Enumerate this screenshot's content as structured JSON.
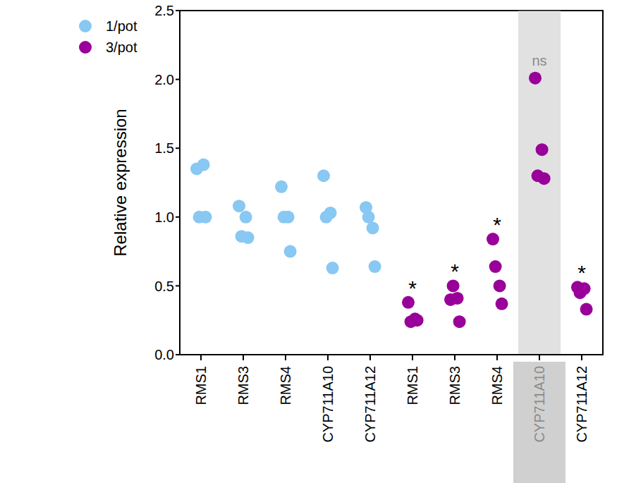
{
  "chart_data": {
    "type": "scatter",
    "y_label": "Relative expression",
    "categories": [
      "RMS1",
      "RMS3",
      "RMS4",
      "CYP711A10",
      "CYP711A12",
      "RMS1",
      "RMS3",
      "RMS4",
      "CYP711A10",
      "CYP711A12"
    ],
    "series": [
      {
        "name": "1/pot",
        "color": "#88c8f2",
        "marker": "circle",
        "values": [
          [
            1.35,
            1.38,
            1.0,
            1.0
          ],
          [
            1.08,
            1.0,
            0.86,
            0.85
          ],
          [
            1.22,
            1.0,
            1.0,
            0.75
          ],
          [
            1.3,
            1.03,
            1.0,
            0.63
          ],
          [
            1.07,
            0.92,
            1.0,
            0.64
          ],
          null,
          null,
          null,
          null,
          null
        ]
      },
      {
        "name": "3/pot",
        "color": "#990099",
        "marker": "circle",
        "values": [
          null,
          null,
          null,
          null,
          null,
          [
            0.38,
            0.26,
            0.24,
            0.25
          ],
          [
            0.4,
            0.41,
            0.5,
            0.24
          ],
          [
            0.84,
            0.5,
            0.64,
            0.37
          ],
          [
            2.01,
            1.49,
            1.3,
            1.28
          ],
          [
            0.49,
            0.48,
            0.45,
            0.33
          ]
        ]
      }
    ],
    "annotations": [
      null,
      null,
      null,
      null,
      null,
      "*",
      "*",
      "*",
      "ns",
      "*"
    ],
    "highlight_category_index": 8,
    "ylim": [
      0,
      2.5
    ],
    "yticks": [
      {
        "value": 0,
        "label": "0.0"
      },
      {
        "value": 0.5,
        "label": "0.5"
      },
      {
        "value": 1,
        "label": "1.0"
      },
      {
        "value": 1.5,
        "label": "1.5"
      },
      {
        "value": 2,
        "label": "2.0"
      },
      {
        "value": 2.5,
        "label": "2.5"
      }
    ],
    "grid": false,
    "legend": "upper left"
  }
}
